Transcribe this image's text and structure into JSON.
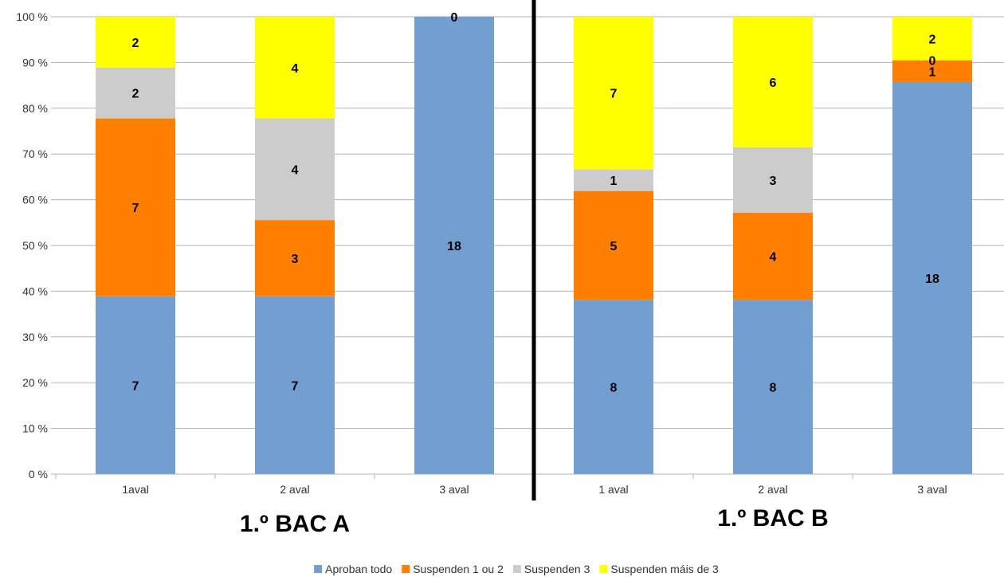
{
  "chart_data": {
    "type": "bar",
    "stacked": "percent",
    "title": "",
    "xlabel": "",
    "ylabel": "",
    "ylim": [
      0,
      100
    ],
    "yticks": [
      "0 %",
      "10 %",
      "20 %",
      "30 %",
      "40 %",
      "50 %",
      "60 %",
      "70 %",
      "80 %",
      "90 %",
      "100 %"
    ],
    "grid": true,
    "legend_position": "bottom",
    "group_divider": true,
    "groups": [
      {
        "name": "1.º BAC A",
        "categories": [
          "1aval",
          "2 aval",
          "3 aval"
        ]
      },
      {
        "name": "1.º BAC B",
        "categories": [
          "1 aval",
          "2 aval",
          "3 aval"
        ]
      }
    ],
    "series": [
      {
        "name": "Aproban todo",
        "color": "#729fcf",
        "values": [
          7,
          7,
          18,
          8,
          8,
          18
        ]
      },
      {
        "name": "Suspenden 1 ou 2",
        "color": "#ff8000",
        "values": [
          7,
          3,
          0,
          5,
          4,
          1
        ]
      },
      {
        "name": "Suspenden 3",
        "color": "#cccccc",
        "values": [
          2,
          4,
          0,
          1,
          3,
          0
        ]
      },
      {
        "name": "Suspenden máis de 3",
        "color": "#ffff00",
        "values": [
          2,
          4,
          0,
          7,
          6,
          2
        ]
      }
    ]
  }
}
